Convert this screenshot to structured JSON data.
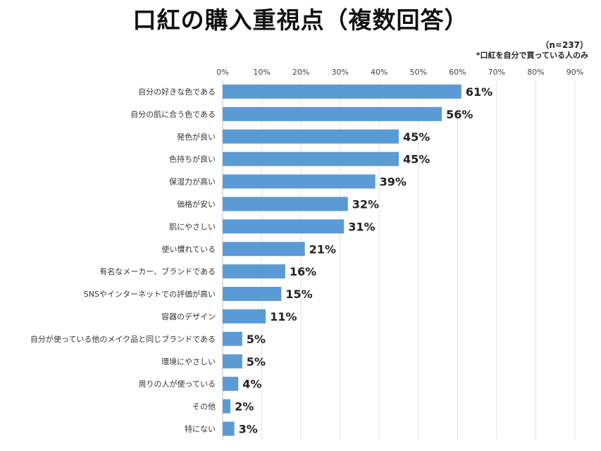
{
  "chart_data": {
    "type": "bar",
    "orientation": "horizontal",
    "title": "口紅の購入重視点（複数回答）",
    "sample_size": "（n=237）",
    "note": "*口紅を自分で買っている人のみ",
    "xlim": [
      0,
      90
    ],
    "xticks": [
      "0%",
      "10%",
      "20%",
      "30%",
      "40%",
      "50%",
      "60%",
      "70%",
      "80%",
      "90%"
    ],
    "bar_color": "#5b9bd5",
    "categories": [
      "自分の好きな色である",
      "自分の肌に合う色である",
      "発色が良い",
      "色持ちが良い",
      "保湿力が高い",
      "価格が安い",
      "肌にやさしい",
      "使い慣れている",
      "有名なメーカー、ブランドである",
      "SNSやインターネットでの評価が高い",
      "容器のデザイン",
      "自分が使っている他のメイク品と同じブランドである",
      "環境にやさしい",
      "周りの人が使っている",
      "その他",
      "特にない"
    ],
    "values": [
      61,
      56,
      45,
      45,
      39,
      32,
      31,
      21,
      16,
      15,
      11,
      5,
      5,
      4,
      2,
      3
    ],
    "labels": [
      "61%",
      "56%",
      "45%",
      "45%",
      "39%",
      "32%",
      "31%",
      "21%",
      "16%",
      "15%",
      "11%",
      "5%",
      "5%",
      "4%",
      "2%",
      "3%"
    ]
  }
}
